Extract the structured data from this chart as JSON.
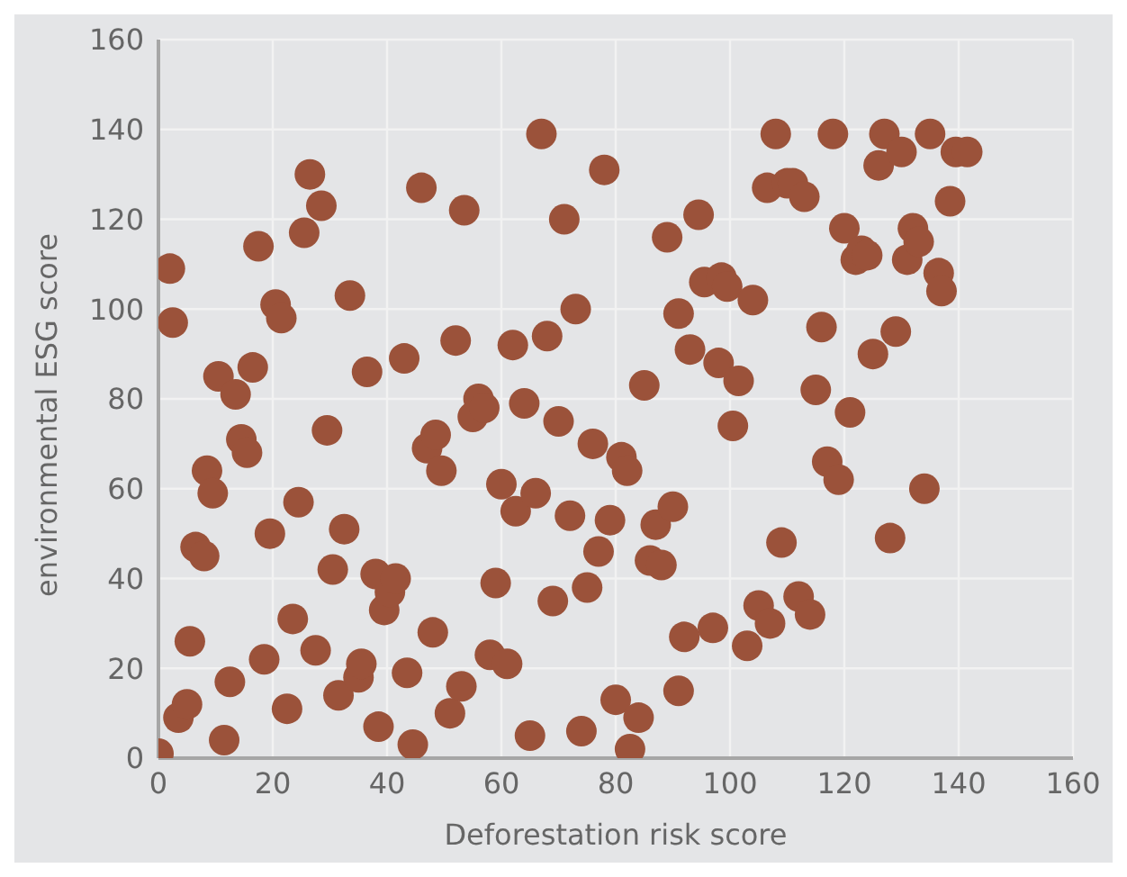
{
  "chart_data": {
    "type": "scatter",
    "xlabel": "Deforestation risk score",
    "ylabel": "environmental ESG score",
    "xlim": [
      0,
      160
    ],
    "xticks": [
      0,
      20,
      40,
      60,
      80,
      100,
      120,
      140,
      160
    ],
    "ylim": [
      0,
      160
    ],
    "yticks": [
      0,
      20,
      40,
      60,
      80,
      100,
      120,
      140,
      160
    ],
    "grid": true,
    "legend": false,
    "marker": "circle",
    "series": [
      {
        "color": "#9b523a",
        "x": [
          0,
          2,
          2.5,
          3.5,
          5,
          5.5,
          6.5,
          8,
          8.5,
          9.5,
          10.5,
          11.5,
          12.5,
          13.5,
          14.5,
          15.5,
          16.5,
          17.5,
          18.5,
          19.5,
          20.5,
          21.5,
          22.5,
          23.5,
          24.5,
          25.5,
          26.5,
          27.5,
          28.5,
          29.5,
          30.5,
          31.5,
          32.5,
          33.5,
          35,
          35.5,
          36.5,
          38,
          38.5,
          39.5,
          40.5,
          41.5,
          43,
          43.5,
          44.5,
          46,
          47,
          48,
          48.5,
          49.5,
          51,
          52,
          53,
          53.5,
          55,
          56,
          57,
          58,
          59,
          60,
          61,
          62,
          62.5,
          64,
          65,
          66,
          67,
          68,
          69,
          70,
          71,
          72,
          73,
          74,
          75,
          76,
          77,
          78,
          79,
          80,
          81,
          82,
          82.5,
          84,
          85,
          86,
          87,
          88,
          89,
          90,
          91,
          91,
          92,
          93,
          94.5,
          95.5,
          97,
          98,
          98.5,
          99.5,
          100.5,
          101.5,
          103,
          104,
          105,
          106.5,
          107,
          108,
          109,
          110,
          111,
          112,
          113,
          114,
          115,
          116,
          117,
          118,
          119,
          120,
          121,
          122,
          123,
          124,
          125,
          126,
          127,
          128,
          129,
          130,
          131,
          132,
          133,
          134,
          135,
          136.5,
          137,
          138.5,
          139.5,
          141.5
        ],
        "values": [
          1,
          109,
          97,
          9,
          12,
          26,
          47,
          45,
          64,
          59,
          85,
          4,
          17,
          81,
          71,
          68,
          87,
          114,
          22,
          50,
          101,
          98,
          11,
          31,
          57,
          117,
          130,
          24,
          123,
          73,
          42,
          14,
          51,
          103,
          18,
          21,
          86,
          41,
          7,
          33,
          37,
          40,
          89,
          19,
          3,
          127,
          69,
          28,
          72,
          64,
          10,
          93,
          16,
          122,
          76,
          80,
          78,
          23,
          39,
          61,
          21,
          92,
          55,
          79,
          5,
          59,
          139,
          94,
          35,
          75,
          120,
          54,
          100,
          6,
          38,
          70,
          46,
          131,
          53,
          13,
          67,
          64,
          2,
          9,
          83,
          44,
          52,
          43,
          116,
          56,
          99,
          15,
          27,
          91,
          121,
          106,
          29,
          88,
          107,
          105,
          74,
          84,
          25,
          102,
          34,
          127,
          30,
          139,
          48,
          128,
          128,
          36,
          125,
          32,
          82,
          96,
          66,
          139,
          62,
          118,
          77,
          111,
          113,
          112,
          90,
          132,
          139,
          49,
          95,
          135,
          111,
          118,
          115,
          60,
          139,
          108,
          104,
          124,
          135,
          135
        ]
      }
    ]
  }
}
